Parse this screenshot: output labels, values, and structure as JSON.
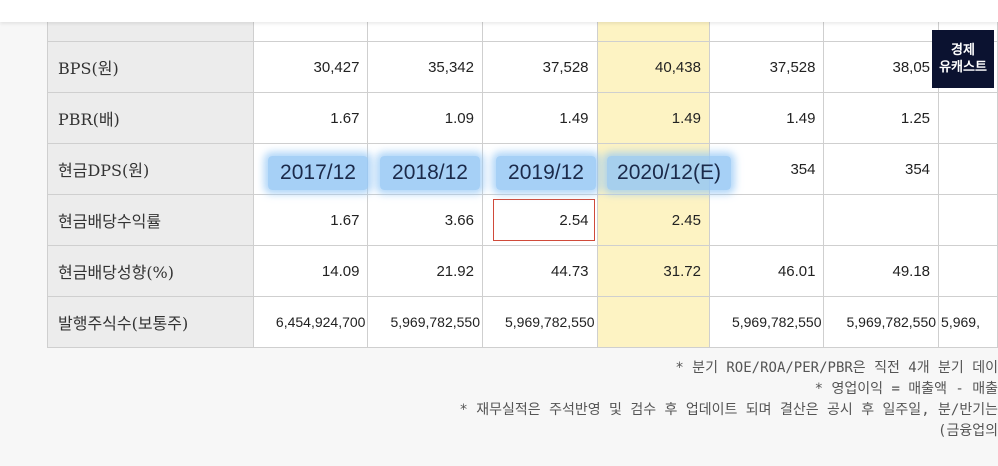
{
  "year_tags": [
    "2017/12",
    "2018/12",
    "2019/12",
    "2020/12(E)"
  ],
  "table": {
    "rows": [
      {
        "label": "",
        "cells": [
          "",
          "",
          "",
          "",
          "",
          "",
          ""
        ]
      },
      {
        "label": "BPS(원)",
        "cells": [
          "30,427",
          "35,342",
          "37,528",
          "40,438",
          "37,528",
          "38,05",
          ""
        ]
      },
      {
        "label": "PBR(배)",
        "cells": [
          "1.67",
          "1.09",
          "1.49",
          "1.49",
          "1.49",
          "1.25",
          ""
        ]
      },
      {
        "label": "현금DPS(원)",
        "cells": [
          "",
          "",
          "",
          "",
          "354",
          "354",
          ""
        ]
      },
      {
        "label": "현금배당수익률",
        "cells": [
          "1.67",
          "3.66",
          "2.54",
          "2.45",
          "",
          "",
          ""
        ]
      },
      {
        "label": "현금배당성향(%)",
        "cells": [
          "14.09",
          "21.92",
          "44.73",
          "31.72",
          "46.01",
          "49.18",
          ""
        ]
      },
      {
        "label": "발행주식수(보통주)",
        "cells": [
          "6,454,924,700",
          "5,969,782,550",
          "5,969,782,550",
          "",
          "5,969,782,550",
          "5,969,782,550",
          "5,969,"
        ]
      }
    ]
  },
  "logo": {
    "line1": "경제",
    "line2": "유캐스트"
  },
  "notes": [
    "* 분기 ROE/ROA/PER/PBR은 직전 4개 분기 데이",
    "* 영업이익 = 매출액 - 매출",
    "* 재무실적은 주석반영 및 검수 후 업데이트 되며 결산은 공시 후 일주일, 분/반기는",
    "(금융업의"
  ],
  "colors": {
    "highlight_column": "#fdf3c3",
    "year_tag": "#96c8f5",
    "red_box": "#d04a3a",
    "logo_bg": "#0b1230"
  }
}
